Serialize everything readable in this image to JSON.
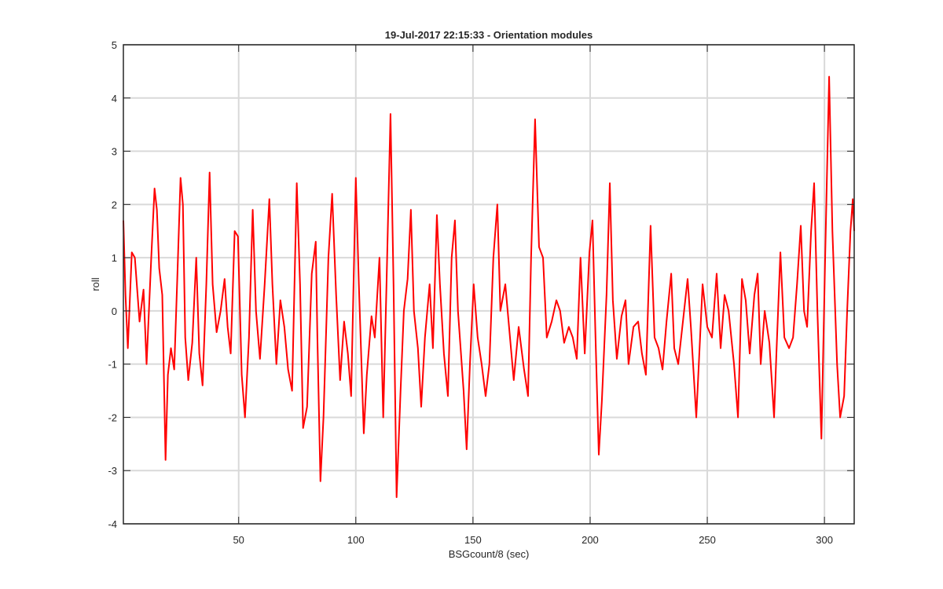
{
  "chart_data": {
    "type": "line",
    "title": "19-Jul-2017 22:15:33 - Orientation modules",
    "xlabel": "BSGcount/8 (sec)",
    "ylabel": "roll",
    "xlim": [
      0.8,
      312.7
    ],
    "ylim": [
      -4,
      5
    ],
    "xticks": [
      50,
      100,
      150,
      200,
      250,
      300
    ],
    "yticks": [
      -4,
      -3,
      -2,
      -1,
      0,
      1,
      2,
      3,
      4,
      5
    ],
    "grid": true,
    "x": [
      0.8,
      1.7,
      2.7,
      4.4,
      5.7,
      7.7,
      9.4,
      10.7,
      12.7,
      14.1,
      15.1,
      16.1,
      17.4,
      18.8,
      19.8,
      21.1,
      22.5,
      23.8,
      25.2,
      26.2,
      27.2,
      28.5,
      30.2,
      31.9,
      33.2,
      34.6,
      36.2,
      37.6,
      38.9,
      40.6,
      42.3,
      44.0,
      45.3,
      46.6,
      48.3,
      49.7,
      51.3,
      52.7,
      54.4,
      56.0,
      57.4,
      59.1,
      61.1,
      63.1,
      64.4,
      66.1,
      67.8,
      69.5,
      71.1,
      72.8,
      74.8,
      76.2,
      77.5,
      79.2,
      81.2,
      82.9,
      83.6,
      84.9,
      86.2,
      88.3,
      89.9,
      91.6,
      93.3,
      95.0,
      96.6,
      98.0,
      100,
      101.3,
      103.4,
      104.7,
      106.7,
      108.1,
      110.1,
      111.7,
      113.1,
      114.8,
      116.1,
      117.4,
      119.1,
      120.5,
      122.1,
      123.5,
      124.8,
      126.5,
      127.9,
      129.5,
      131.5,
      132.9,
      134.6,
      135.9,
      137.6,
      139.3,
      140.9,
      142.3,
      143.6,
      146.0,
      147.3,
      148.7,
      150.3,
      152.0,
      153.7,
      155.4,
      157.0,
      158.7,
      160.4,
      161.7,
      163.8,
      165.4,
      167.4,
      169.5,
      171.8,
      173.5,
      174.8,
      176.5,
      178.2,
      179.9,
      181.5,
      183.6,
      185.6,
      187.2,
      188.9,
      190.9,
      192.6,
      194.3,
      195.9,
      197.7,
      199.7,
      201.0,
      202.3,
      203.7,
      205.0,
      207.0,
      208.4,
      209.7,
      211.4,
      213.4,
      215.1,
      216.4,
      218.5,
      220.5,
      222.1,
      223.8,
      225.8,
      227.5,
      229.2,
      230.9,
      232.6,
      234.6,
      235.9,
      237.6,
      239.6,
      241.6,
      243.0,
      245.3,
      246.6,
      248.0,
      250,
      252.0,
      254.0,
      255.7,
      257.4,
      259.1,
      261.4,
      263.1,
      264.8,
      266.4,
      268.1,
      270.1,
      271.5,
      272.8,
      274.5,
      276.5,
      278.5,
      279.5,
      281.2,
      282.9,
      284.9,
      286.6,
      288.3,
      289.9,
      291.3,
      292.6,
      294.3,
      295.6,
      297.0,
      298.7,
      300.3,
      302.0,
      303.4,
      305.4,
      306.7,
      308.4,
      309.7,
      311.1,
      312.1,
      312.7
    ],
    "series": [
      {
        "name": "roll",
        "color": "#ff0000",
        "values": [
          1.7,
          0.3,
          -0.7,
          1.1,
          1.0,
          -0.2,
          0.4,
          -1.0,
          1.0,
          2.3,
          1.9,
          0.8,
          0.3,
          -2.8,
          -1.2,
          -0.7,
          -1.1,
          0.6,
          2.5,
          2.0,
          -0.5,
          -1.3,
          -0.6,
          1.0,
          -0.8,
          -1.4,
          0.5,
          2.6,
          0.5,
          -0.4,
          0.0,
          0.6,
          -0.3,
          -0.8,
          1.5,
          1.4,
          -1.2,
          -2.0,
          -0.5,
          1.9,
          0.0,
          -0.9,
          0.5,
          2.1,
          0.5,
          -1.0,
          0.2,
          -0.3,
          -1.1,
          -1.5,
          2.4,
          0.5,
          -2.2,
          -1.8,
          0.7,
          1.3,
          -0.5,
          -3.2,
          -2.0,
          1.0,
          2.2,
          0.3,
          -1.3,
          -0.2,
          -0.8,
          -1.6,
          2.5,
          0.5,
          -2.3,
          -1.2,
          -0.1,
          -0.5,
          1.0,
          -2.0,
          0.5,
          3.7,
          0.5,
          -3.5,
          -1.5,
          0.0,
          0.6,
          1.9,
          0.0,
          -0.7,
          -1.8,
          -0.5,
          0.5,
          -0.7,
          1.8,
          0.5,
          -0.8,
          -1.6,
          1.0,
          1.7,
          0.0,
          -1.5,
          -2.6,
          -1.0,
          0.5,
          -0.5,
          -1.0,
          -1.6,
          -1.0,
          1.0,
          2.0,
          0.0,
          0.5,
          -0.3,
          -1.3,
          -0.3,
          -1.1,
          -1.6,
          1.0,
          3.6,
          1.2,
          1.0,
          -0.5,
          -0.2,
          0.2,
          0.0,
          -0.6,
          -0.3,
          -0.5,
          -0.9,
          1.0,
          -0.8,
          1.1,
          1.7,
          -0.5,
          -2.7,
          -1.7,
          0.3,
          2.4,
          0.2,
          -0.9,
          -0.1,
          0.2,
          -1.0,
          -0.3,
          -0.2,
          -0.8,
          -1.2,
          1.6,
          -0.5,
          -0.7,
          -1.1,
          -0.2,
          0.7,
          -0.7,
          -1.0,
          -0.2,
          0.6,
          -0.3,
          -2.0,
          -0.8,
          0.5,
          -0.3,
          -0.5,
          0.7,
          -0.7,
          0.3,
          0.0,
          -1.0,
          -2.0,
          0.6,
          0.2,
          -0.8,
          0.3,
          0.7,
          -1.0,
          0.0,
          -0.6,
          -2.0,
          -0.8,
          1.1,
          -0.5,
          -0.7,
          -0.5,
          0.5,
          1.6,
          0.0,
          -0.3,
          1.5,
          2.4,
          0.0,
          -2.4,
          1.0,
          4.4,
          1.5,
          -1.0,
          -2.0,
          -1.6,
          0.0,
          1.5,
          2.1,
          1.5
        ]
      }
    ]
  }
}
